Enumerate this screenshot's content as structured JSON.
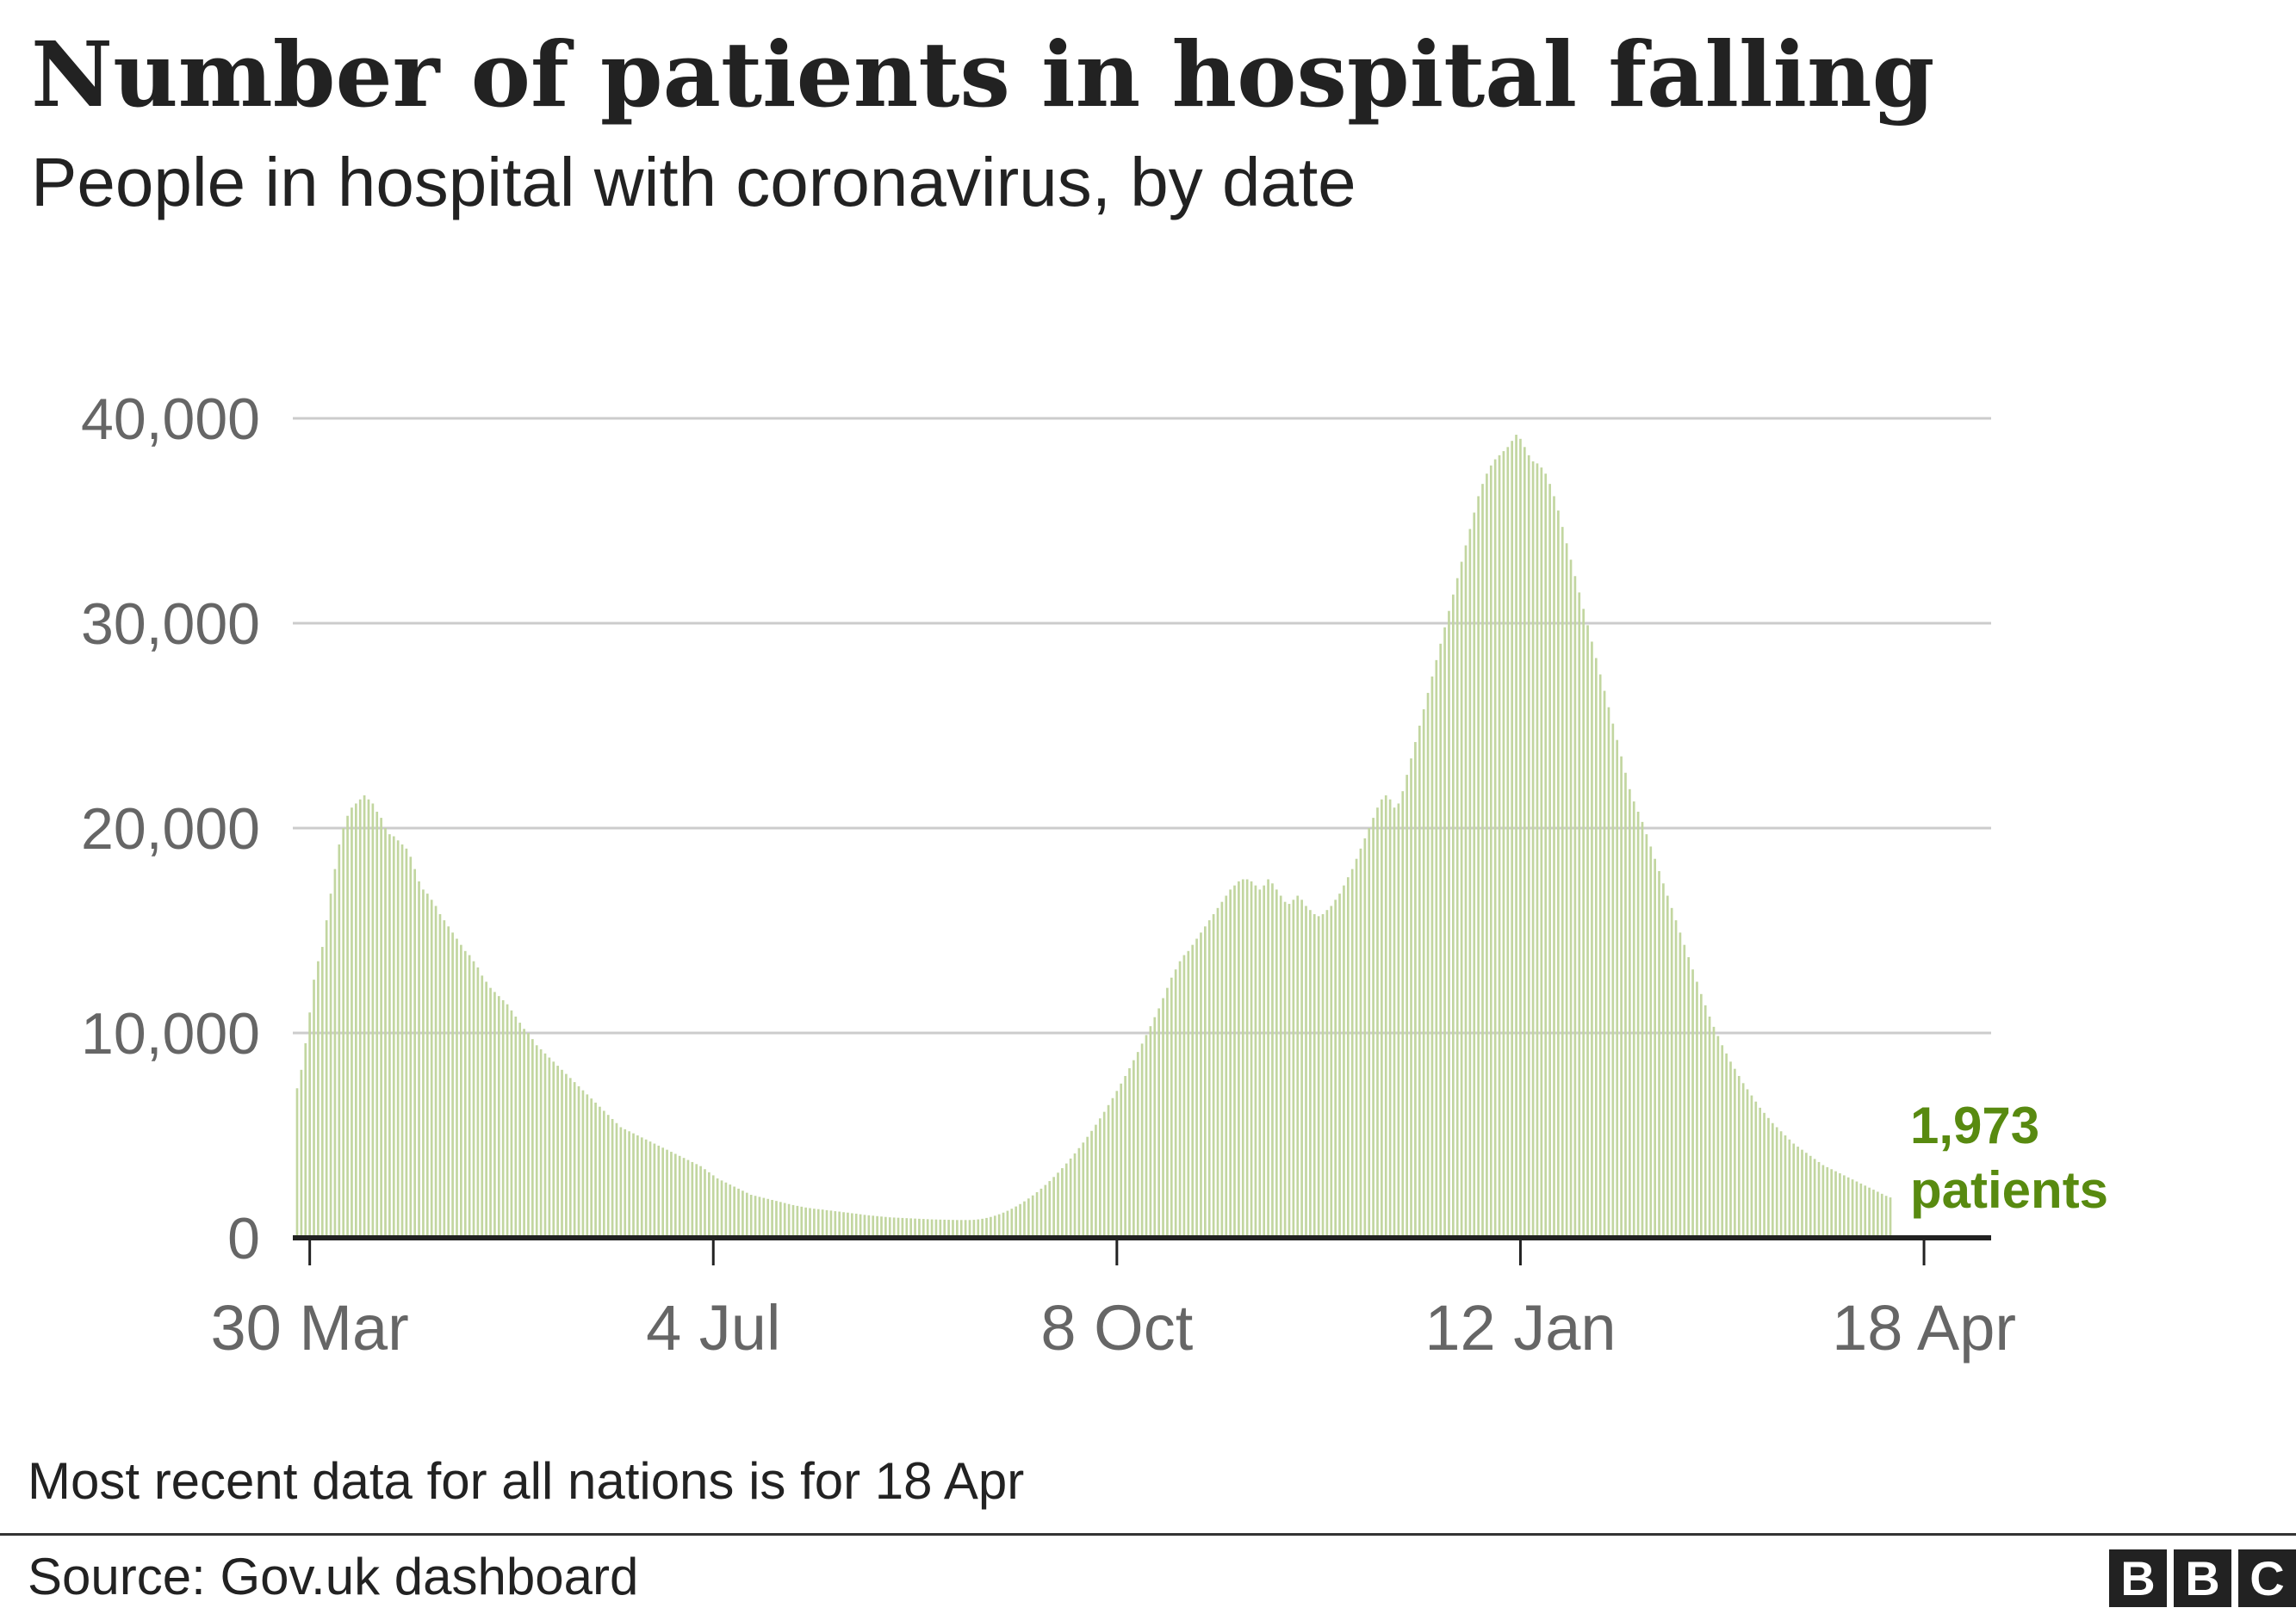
{
  "chart_data": {
    "type": "bar",
    "title": "Number of patients in hospital falling",
    "subtitle": "People in hospital with coronavirus, by date",
    "xlabel": "",
    "ylabel": "",
    "ylim": [
      0,
      40000
    ],
    "yticks": [
      0,
      10000,
      20000,
      30000,
      40000
    ],
    "ytick_labels": [
      "0",
      "10,000",
      "20,000",
      "30,000",
      "40,000"
    ],
    "x_start": "2020-03-27",
    "xticks": [
      {
        "date": "2020-03-30",
        "label": "30 Mar"
      },
      {
        "date": "2020-07-04",
        "label": "4 Jul"
      },
      {
        "date": "2020-10-08",
        "label": "8 Oct"
      },
      {
        "date": "2021-01-12",
        "label": "12 Jan"
      },
      {
        "date": "2021-04-18",
        "label": "18 Apr"
      }
    ],
    "grid": true,
    "bar_color": "#c2d6a0",
    "annotation_color": "#588a10",
    "series": [
      {
        "values": [
          7300,
          8200,
          9500,
          11000,
          12600,
          13500,
          14200,
          15500,
          16800,
          18000,
          19200,
          20000,
          20600,
          21000,
          21200,
          21400,
          21600,
          21400,
          21200,
          20800,
          20500,
          20000,
          19700,
          19600,
          19400,
          19200,
          19000,
          18600,
          18000,
          17400,
          17000,
          16800,
          16500,
          16200,
          15800,
          15500,
          15200,
          14900,
          14600,
          14300,
          14000,
          13800,
          13500,
          13200,
          12800,
          12500,
          12200,
          12000,
          11800,
          11600,
          11400,
          11100,
          10800,
          10500,
          10200,
          10000,
          9700,
          9400,
          9200,
          9000,
          8800,
          8600,
          8400,
          8200,
          8000,
          7800,
          7600,
          7400,
          7200,
          7000,
          6800,
          6600,
          6400,
          6200,
          6000,
          5800,
          5600,
          5400,
          5300,
          5200,
          5100,
          5000,
          4900,
          4800,
          4700,
          4600,
          4500,
          4400,
          4300,
          4200,
          4100,
          4000,
          3900,
          3800,
          3700,
          3600,
          3500,
          3350,
          3200,
          3050,
          2900,
          2800,
          2700,
          2600,
          2500,
          2400,
          2300,
          2200,
          2100,
          2050,
          2000,
          1950,
          1900,
          1850,
          1800,
          1750,
          1700,
          1650,
          1600,
          1560,
          1520,
          1480,
          1450,
          1420,
          1400,
          1380,
          1350,
          1330,
          1300,
          1280,
          1250,
          1230,
          1200,
          1180,
          1150,
          1120,
          1100,
          1080,
          1060,
          1040,
          1020,
          1000,
          990,
          980,
          970,
          960,
          950,
          940,
          930,
          920,
          910,
          900,
          895,
          890,
          885,
          880,
          875,
          870,
          870,
          870,
          870,
          880,
          900,
          930,
          970,
          1020,
          1080,
          1150,
          1230,
          1320,
          1420,
          1530,
          1650,
          1780,
          1920,
          2070,
          2230,
          2400,
          2580,
          2770,
          2970,
          3180,
          3400,
          3630,
          3870,
          4120,
          4380,
          4650,
          4930,
          5220,
          5520,
          5830,
          6150,
          6480,
          6820,
          7170,
          7530,
          7900,
          8280,
          8670,
          9070,
          9480,
          9900,
          10330,
          10770,
          11200,
          11700,
          12200,
          12700,
          13100,
          13500,
          13800,
          14000,
          14300,
          14600,
          14900,
          15200,
          15500,
          15800,
          16100,
          16400,
          16700,
          17000,
          17200,
          17400,
          17500,
          17500,
          17400,
          17200,
          17000,
          17200,
          17500,
          17300,
          17000,
          16700,
          16400,
          16300,
          16500,
          16700,
          16500,
          16200,
          16000,
          15800,
          15700,
          15800,
          16000,
          16200,
          16500,
          16800,
          17200,
          17600,
          18000,
          18500,
          19000,
          19500,
          20000,
          20500,
          21000,
          21400,
          21600,
          21400,
          21000,
          21200,
          21800,
          22600,
          23400,
          24200,
          25000,
          25800,
          26600,
          27400,
          28200,
          29000,
          29800,
          30600,
          31400,
          32200,
          33000,
          33800,
          34600,
          35400,
          36200,
          36800,
          37300,
          37700,
          38000,
          38200,
          38400,
          38600,
          38900,
          39200,
          39000,
          38600,
          38200,
          37900,
          37800,
          37600,
          37300,
          36800,
          36200,
          35500,
          34700,
          33900,
          33100,
          32300,
          31500,
          30700,
          29900,
          29100,
          28300,
          27500,
          26700,
          25900,
          25100,
          24300,
          23500,
          22700,
          21900,
          21300,
          20800,
          20300,
          19700,
          19100,
          18500,
          17900,
          17300,
          16700,
          16100,
          15500,
          14900,
          14300,
          13700,
          13100,
          12500,
          11900,
          11350,
          10800,
          10300,
          9850,
          9400,
          9000,
          8600,
          8250,
          7900,
          7550,
          7250,
          6950,
          6650,
          6350,
          6100,
          5850,
          5600,
          5400,
          5200,
          5000,
          4800,
          4600,
          4450,
          4300,
          4150,
          4000,
          3850,
          3700,
          3550,
          3450,
          3350,
          3250,
          3150,
          3050,
          2950,
          2850,
          2750,
          2650,
          2550,
          2450,
          2350,
          2250,
          2150,
          2050,
          1973
        ]
      }
    ],
    "annotation_line1": "1,973",
    "annotation_line2": "patients"
  },
  "footer": {
    "note": "Most recent data for all nations is for 18 Apr",
    "source": "Source: Gov.uk dashboard",
    "logo_letters": [
      "B",
      "B",
      "C"
    ]
  }
}
